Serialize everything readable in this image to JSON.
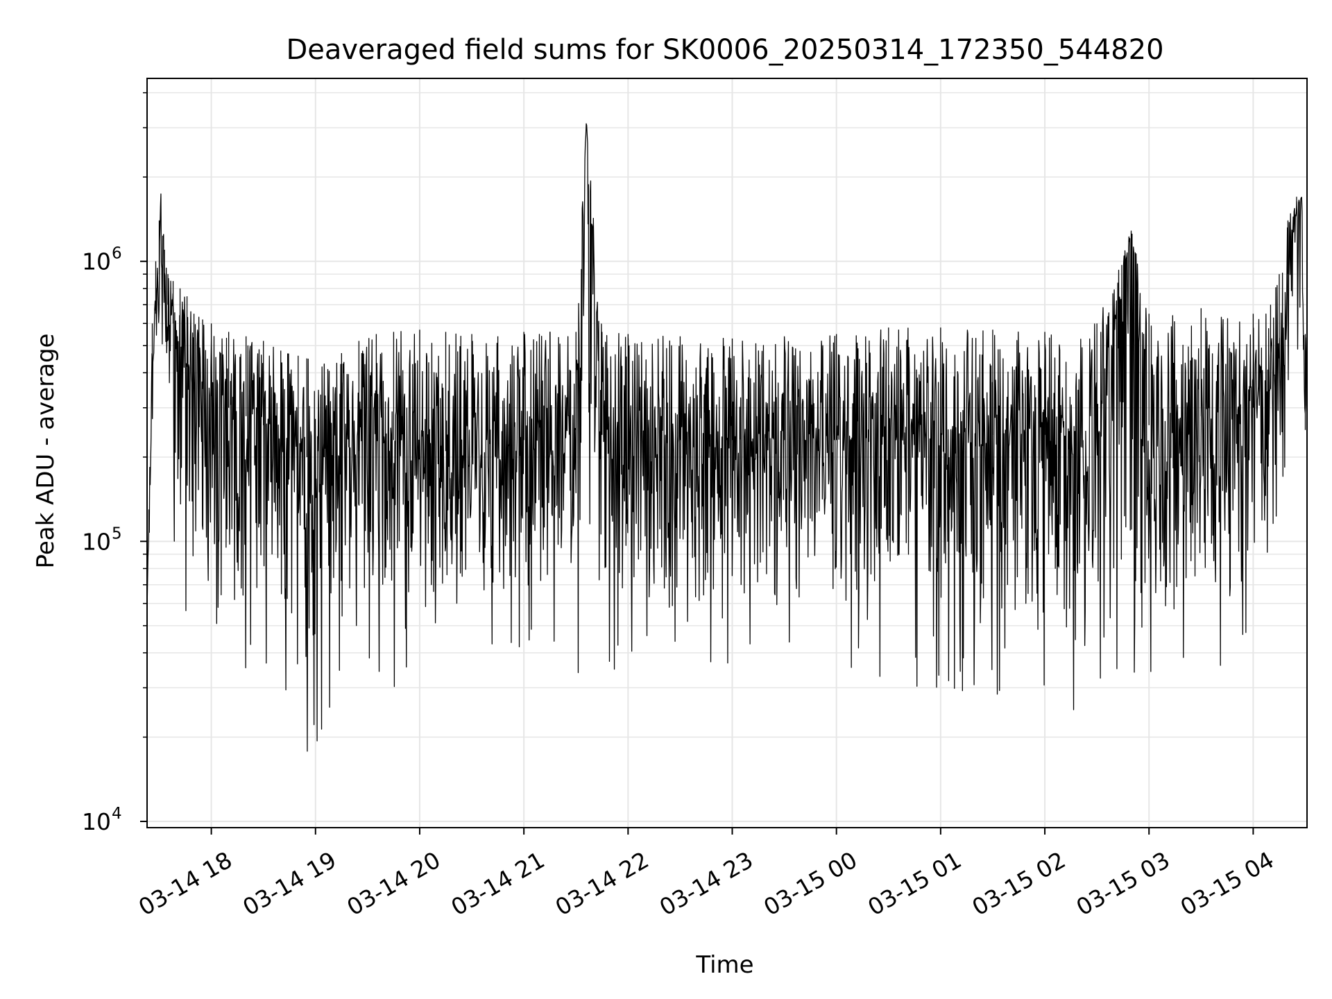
{
  "chart_data": {
    "type": "line",
    "title": "Deaveraged field sums for SK0006_20250314_172350_544820",
    "xlabel": "Time",
    "ylabel": "Peak ADU - average",
    "yscale": "log",
    "ylim": [
      9500,
      4500000
    ],
    "xlim": [
      "2025-03-14 17:23",
      "2025-03-15 04:31"
    ],
    "grid": true,
    "legend": "none",
    "line_color": "#000000",
    "grid_color": "#e6e6e6",
    "x_ticks": [
      {
        "t": "2025-03-14 18:00",
        "label": "03-14 18"
      },
      {
        "t": "2025-03-14 19:00",
        "label": "03-14 19"
      },
      {
        "t": "2025-03-14 20:00",
        "label": "03-14 20"
      },
      {
        "t": "2025-03-14 21:00",
        "label": "03-14 21"
      },
      {
        "t": "2025-03-14 22:00",
        "label": "03-14 22"
      },
      {
        "t": "2025-03-14 23:00",
        "label": "03-14 23"
      },
      {
        "t": "2025-03-15 00:00",
        "label": "03-15 00"
      },
      {
        "t": "2025-03-15 01:00",
        "label": "03-15 01"
      },
      {
        "t": "2025-03-15 02:00",
        "label": "03-15 02"
      },
      {
        "t": "2025-03-15 03:00",
        "label": "03-15 03"
      },
      {
        "t": "2025-03-15 04:00",
        "label": "03-15 04"
      }
    ],
    "y_ticks": [
      {
        "value": 10000,
        "label": "10",
        "exp": "4"
      },
      {
        "value": 100000,
        "label": "10",
        "exp": "5"
      },
      {
        "value": 1000000,
        "label": "10",
        "exp": "6"
      }
    ],
    "series": [
      {
        "x": [
          "2025-03-14 17:23",
          "2025-03-14 17:24",
          "2025-03-14 17:26",
          "2025-03-14 17:28",
          "2025-03-14 17:30",
          "2025-03-14 17:31",
          "2025-03-14 17:33",
          "2025-03-14 17:35",
          "2025-03-14 17:38",
          "2025-03-14 17:42",
          "2025-03-14 17:46",
          "2025-03-14 17:50",
          "2025-03-14 17:55",
          "2025-03-14 18:00",
          "2025-03-14 18:10",
          "2025-03-14 18:20",
          "2025-03-14 18:30",
          "2025-03-14 18:40",
          "2025-03-14 18:50",
          "2025-03-14 18:55",
          "2025-03-14 19:05",
          "2025-03-14 19:15",
          "2025-03-14 19:25",
          "2025-03-14 19:35",
          "2025-03-14 19:45",
          "2025-03-14 20:00",
          "2025-03-14 20:15",
          "2025-03-14 20:30",
          "2025-03-14 20:45",
          "2025-03-14 21:00",
          "2025-03-14 21:15",
          "2025-03-14 21:30",
          "2025-03-14 21:36",
          "2025-03-14 21:45",
          "2025-03-14 22:00",
          "2025-03-14 22:30",
          "2025-03-14 23:00",
          "2025-03-14 23:30",
          "2025-03-15 00:00",
          "2025-03-15 00:30",
          "2025-03-15 01:00",
          "2025-03-15 01:30",
          "2025-03-15 02:00",
          "2025-03-15 02:30",
          "2025-03-15 02:50",
          "2025-03-15 03:00",
          "2025-03-15 03:30",
          "2025-03-15 04:00",
          "2025-03-15 04:10",
          "2025-03-15 04:15",
          "2025-03-15 04:20",
          "2025-03-15 04:25",
          "2025-03-15 04:28",
          "2025-03-15 04:30"
        ],
        "y": [
          55000,
          110000,
          330000,
          650000,
          900000,
          1900000,
          800000,
          700000,
          600000,
          500000,
          420000,
          380000,
          350000,
          330000,
          300000,
          280000,
          260000,
          240000,
          220000,
          200000,
          200000,
          200000,
          210000,
          220000,
          230000,
          230000,
          210000,
          200000,
          200000,
          230000,
          240000,
          250000,
          3200000,
          240000,
          240000,
          230000,
          230000,
          230000,
          230000,
          240000,
          240000,
          240000,
          240000,
          250000,
          1300000,
          260000,
          280000,
          300000,
          350000,
          450000,
          900000,
          1500000,
          1700000,
          250000
        ],
        "upper_envelope": [
          60000,
          130000,
          600000,
          1000000,
          1400000,
          1900000,
          1100000,
          900000,
          850000,
          800000,
          750000,
          650000,
          620000,
          600000,
          560000,
          540000,
          520000,
          480000,
          460000,
          450000,
          430000,
          470000,
          520000,
          550000,
          560000,
          570000,
          560000,
          550000,
          540000,
          560000,
          560000,
          560000,
          3200000,
          560000,
          550000,
          540000,
          530000,
          540000,
          550000,
          580000,
          580000,
          570000,
          560000,
          600000,
          1300000,
          650000,
          680000,
          650000,
          700000,
          900000,
          1400000,
          1700000,
          1700000,
          550000
        ],
        "lower_envelope": [
          50000,
          90000,
          200000,
          300000,
          500000,
          700000,
          400000,
          200000,
          120000,
          80000,
          70000,
          60000,
          55000,
          50000,
          45000,
          40000,
          35000,
          30000,
          30000,
          22000,
          25000,
          40000,
          45000,
          45000,
          40000,
          35000,
          45000,
          50000,
          50000,
          55000,
          50000,
          45000,
          40000,
          45000,
          45000,
          45000,
          45000,
          45000,
          45000,
          40000,
          38000,
          35000,
          35000,
          30000,
          25000,
          40000,
          45000,
          50000,
          60000,
          150000,
          300000,
          400000,
          400000,
          200000
        ]
      }
    ]
  }
}
